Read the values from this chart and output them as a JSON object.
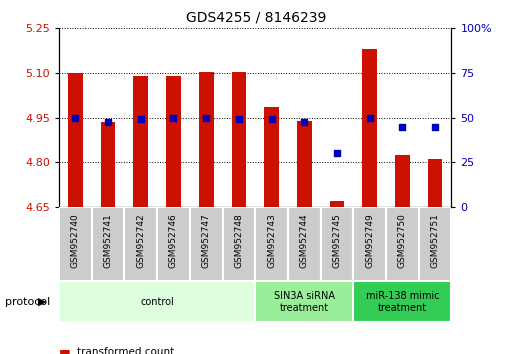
{
  "title": "GDS4255 / 8146239",
  "samples": [
    "GSM952740",
    "GSM952741",
    "GSM952742",
    "GSM952746",
    "GSM952747",
    "GSM952748",
    "GSM952743",
    "GSM952744",
    "GSM952745",
    "GSM952749",
    "GSM952750",
    "GSM952751"
  ],
  "transformed_count": [
    5.1,
    4.935,
    5.09,
    5.09,
    5.105,
    5.105,
    4.985,
    4.94,
    4.67,
    5.18,
    4.825,
    4.81
  ],
  "percentile_rank_y": [
    4.95,
    4.935,
    4.944,
    4.95,
    4.95,
    4.944,
    4.944,
    4.935,
    4.83,
    4.95,
    4.92,
    4.92
  ],
  "ylim_left": [
    4.65,
    5.25
  ],
  "yticks_left": [
    4.65,
    4.8,
    4.95,
    5.1,
    5.25
  ],
  "yticks_right": [
    0,
    25,
    50,
    75,
    100
  ],
  "bar_color": "#cc1100",
  "dot_color": "#0000bb",
  "bar_bottom": 4.65,
  "groups": [
    {
      "label": "control",
      "start": 0,
      "end": 6,
      "color": "#ddffdd"
    },
    {
      "label": "SIN3A siRNA\ntreatment",
      "start": 6,
      "end": 9,
      "color": "#99ee99"
    },
    {
      "label": "miR-138 mimic\ntreatment",
      "start": 9,
      "end": 12,
      "color": "#33cc55"
    }
  ],
  "tick_label_color_left": "#cc1100",
  "tick_label_color_right": "#0000bb",
  "title_fontsize": 10,
  "bar_width": 0.45,
  "dot_size": 18,
  "sample_box_color": "#cccccc",
  "sample_box_edge": "#ffffff"
}
